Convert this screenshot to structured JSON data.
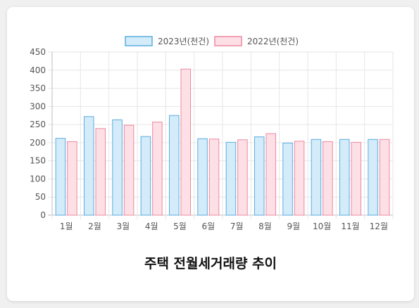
{
  "caption": "주택 전월세거래량 추이",
  "chart_data": {
    "type": "bar",
    "categories": [
      "1월",
      "2월",
      "3월",
      "4월",
      "5월",
      "6월",
      "7월",
      "8월",
      "9월",
      "10월",
      "11월",
      "12월"
    ],
    "series": [
      {
        "name": "2023년(천건)",
        "values": [
          212,
          272,
          263,
          217,
          275,
          211,
          201,
          216,
          199,
          209,
          209,
          209
        ],
        "fill": "#d4ebf9",
        "stroke": "#5aaee0"
      },
      {
        "name": "2022년(천건)",
        "values": [
          203,
          239,
          248,
          257,
          403,
          210,
          208,
          225,
          204,
          203,
          201,
          209
        ],
        "fill": "#fde0e6",
        "stroke": "#ee88a0"
      }
    ],
    "ylim": [
      0,
      450
    ],
    "yticks": [
      0,
      50,
      100,
      150,
      200,
      250,
      300,
      350,
      400,
      450
    ],
    "grid": true,
    "legend": "top-center"
  }
}
